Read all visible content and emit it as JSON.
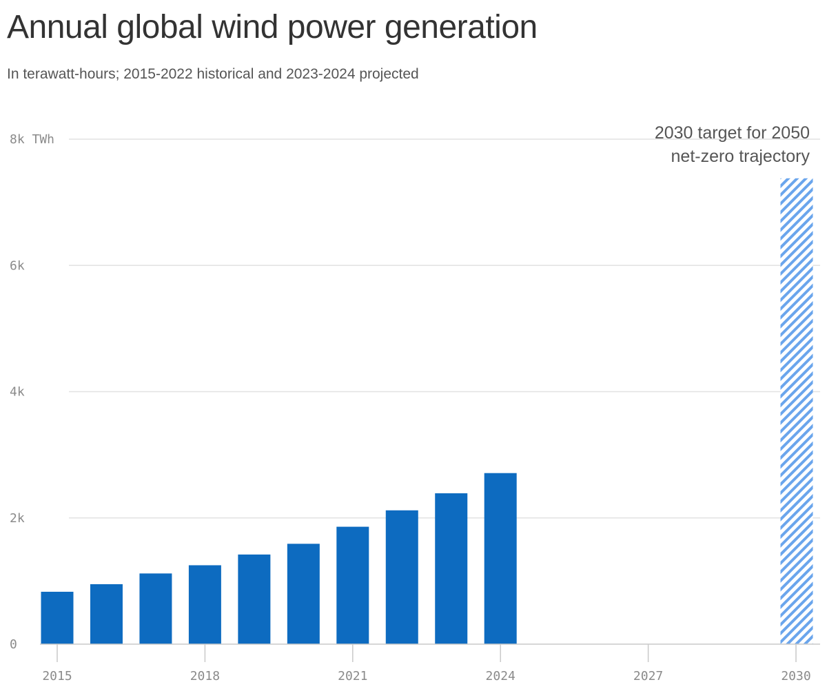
{
  "chart_data": {
    "type": "bar",
    "title": "Annual global wind power generation",
    "subtitle": "In terawatt-hours; 2015-2022 historical and 2023-2024 projected",
    "categories": [
      "2015",
      "2016",
      "2017",
      "2018",
      "2019",
      "2020",
      "2021",
      "2022",
      "2023",
      "2024"
    ],
    "values": [
      830,
      950,
      1120,
      1250,
      1420,
      1590,
      1860,
      2120,
      2390,
      2710
    ],
    "target": {
      "year": 2030,
      "value": 7380,
      "label_line1": "2030 target for 2050",
      "label_line2": "net-zero trajectory"
    },
    "x_ticks": [
      "2015",
      "2018",
      "2021",
      "2024",
      "2027",
      "2030"
    ],
    "x_range": [
      2015,
      2030
    ],
    "y_ticks": [
      {
        "value": 0,
        "label": "0"
      },
      {
        "value": 2000,
        "label": "2k"
      },
      {
        "value": 4000,
        "label": "4k"
      },
      {
        "value": 6000,
        "label": "6k"
      },
      {
        "value": 8000,
        "label": "8k TWh"
      }
    ],
    "ylim": [
      0,
      8000
    ],
    "xlabel": "",
    "ylabel": "",
    "grid": true,
    "colors": {
      "bar": "#0d6bc0",
      "target_stripe": "#6aa5ec",
      "grid": "#e2e2e2",
      "axis": "#c9c9c9"
    }
  }
}
